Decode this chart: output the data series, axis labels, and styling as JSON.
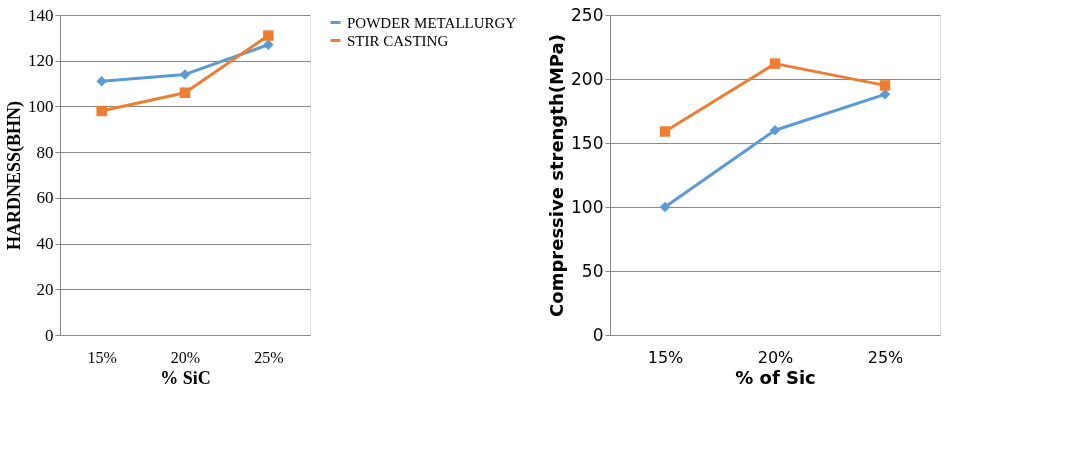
{
  "chart_data": [
    {
      "type": "line",
      "categories": [
        "15%",
        "20%",
        "25%"
      ],
      "xlabel": "% SiC",
      "ylabel": "HARDNESS(BHN)",
      "ylim": [
        0,
        140
      ],
      "yticks": [
        0,
        20,
        40,
        60,
        80,
        100,
        120,
        140
      ],
      "grid": "y",
      "legend": "right",
      "series": [
        {
          "name": "POWDER METALLURGY",
          "color": "#5b9bd5",
          "marker": "diamond",
          "values": [
            111,
            114,
            127
          ]
        },
        {
          "name": "STIR CASTING",
          "color": "#ed7d31",
          "marker": "square",
          "values": [
            98,
            106,
            131
          ]
        }
      ]
    },
    {
      "type": "line",
      "categories": [
        "15%",
        "20%",
        "25%"
      ],
      "xlabel": "% of Sic",
      "ylabel": "Compressive strength(MPa)",
      "ylim": [
        0,
        250
      ],
      "yticks": [
        0,
        50,
        100,
        150,
        200,
        250
      ],
      "grid": "y",
      "series": [
        {
          "color": "#5b9bd5",
          "marker": "diamond",
          "values": [
            100,
            160,
            188
          ]
        },
        {
          "color": "#ed7d31",
          "marker": "square",
          "values": [
            159,
            212,
            195
          ]
        }
      ]
    }
  ]
}
